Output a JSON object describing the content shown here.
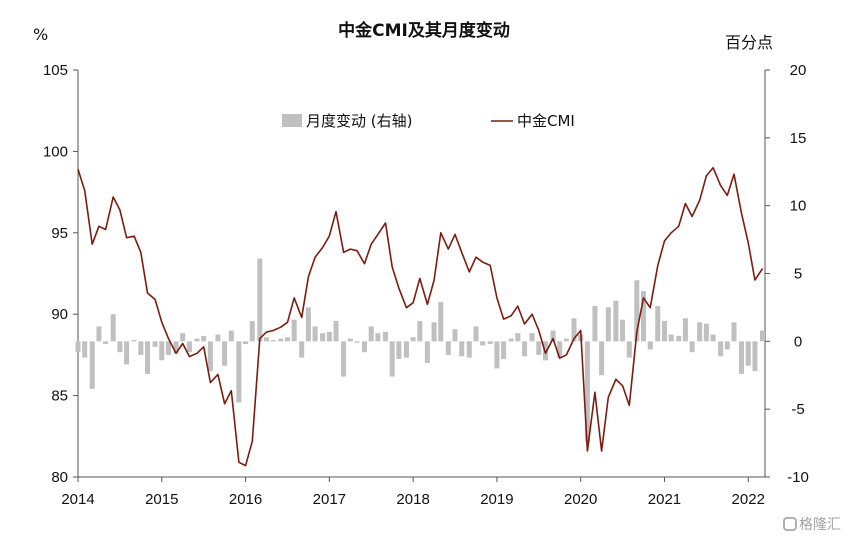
{
  "chart_data": {
    "type": "bar+line",
    "title": "中金CMI及其月度变动",
    "left_unit": "%",
    "right_unit": "百分点",
    "left_ylim": [
      80,
      105
    ],
    "left_yticks": [
      80,
      85,
      90,
      95,
      100,
      105
    ],
    "right_ylim": [
      -10,
      20
    ],
    "right_yticks": [
      -10,
      -5,
      0,
      5,
      10,
      15,
      20
    ],
    "x_ticks": [
      "2014",
      "2015",
      "2016",
      "2017",
      "2018",
      "2019",
      "2020",
      "2021",
      "2022"
    ],
    "x_range": [
      2014.0,
      2022.17
    ],
    "legend": {
      "bar_label": "月度变动 (右轴)",
      "line_label": "中金CMI",
      "position": "top-center"
    },
    "colors": {
      "bar": "#c0c0c0",
      "line": "#7b1c12",
      "axis": "#555555"
    },
    "cmi": [
      [
        2014.0,
        98.9
      ],
      [
        2014.08,
        97.6
      ],
      [
        2014.17,
        94.3
      ],
      [
        2014.25,
        95.4
      ],
      [
        2014.33,
        95.2
      ],
      [
        2014.42,
        97.2
      ],
      [
        2014.5,
        96.4
      ],
      [
        2014.58,
        94.7
      ],
      [
        2014.67,
        94.8
      ],
      [
        2014.75,
        93.8
      ],
      [
        2014.83,
        91.3
      ],
      [
        2014.92,
        90.9
      ],
      [
        2015.0,
        89.5
      ],
      [
        2015.08,
        88.5
      ],
      [
        2015.17,
        87.6
      ],
      [
        2015.25,
        88.2
      ],
      [
        2015.33,
        87.4
      ],
      [
        2015.42,
        87.6
      ],
      [
        2015.5,
        88.0
      ],
      [
        2015.58,
        85.8
      ],
      [
        2015.67,
        86.3
      ],
      [
        2015.75,
        84.5
      ],
      [
        2015.83,
        85.3
      ],
      [
        2015.92,
        80.9
      ],
      [
        2016.0,
        80.7
      ],
      [
        2016.08,
        82.2
      ],
      [
        2016.17,
        88.5
      ],
      [
        2016.25,
        88.9
      ],
      [
        2016.33,
        89.0
      ],
      [
        2016.42,
        89.2
      ],
      [
        2016.5,
        89.5
      ],
      [
        2016.58,
        91.0
      ],
      [
        2016.67,
        89.8
      ],
      [
        2016.75,
        92.3
      ],
      [
        2016.83,
        93.5
      ],
      [
        2016.92,
        94.1
      ],
      [
        2017.0,
        94.8
      ],
      [
        2017.08,
        96.3
      ],
      [
        2017.17,
        93.8
      ],
      [
        2017.25,
        94.0
      ],
      [
        2017.33,
        93.9
      ],
      [
        2017.42,
        93.1
      ],
      [
        2017.5,
        94.3
      ],
      [
        2017.58,
        94.9
      ],
      [
        2017.67,
        95.6
      ],
      [
        2017.75,
        92.9
      ],
      [
        2017.83,
        91.6
      ],
      [
        2017.92,
        90.4
      ],
      [
        2018.0,
        90.7
      ],
      [
        2018.08,
        92.2
      ],
      [
        2018.17,
        90.6
      ],
      [
        2018.25,
        92.1
      ],
      [
        2018.33,
        95.0
      ],
      [
        2018.42,
        94.0
      ],
      [
        2018.5,
        94.9
      ],
      [
        2018.58,
        93.8
      ],
      [
        2018.67,
        92.6
      ],
      [
        2018.75,
        93.5
      ],
      [
        2018.83,
        93.2
      ],
      [
        2018.92,
        93.0
      ],
      [
        2019.0,
        91.0
      ],
      [
        2019.08,
        89.7
      ],
      [
        2019.17,
        89.9
      ],
      [
        2019.25,
        90.5
      ],
      [
        2019.33,
        89.4
      ],
      [
        2019.42,
        90.0
      ],
      [
        2019.5,
        89.0
      ],
      [
        2019.58,
        87.6
      ],
      [
        2019.67,
        88.5
      ],
      [
        2019.75,
        87.3
      ],
      [
        2019.83,
        87.5
      ],
      [
        2019.92,
        88.5
      ],
      [
        2020.0,
        89.0
      ],
      [
        2020.08,
        81.6
      ],
      [
        2020.17,
        85.2
      ],
      [
        2020.25,
        81.6
      ],
      [
        2020.33,
        84.9
      ],
      [
        2020.42,
        86.0
      ],
      [
        2020.5,
        85.6
      ],
      [
        2020.58,
        84.4
      ],
      [
        2020.67,
        88.9
      ],
      [
        2020.75,
        91.0
      ],
      [
        2020.83,
        90.4
      ],
      [
        2020.92,
        93.0
      ],
      [
        2021.0,
        94.5
      ],
      [
        2021.08,
        95.0
      ],
      [
        2021.17,
        95.4
      ],
      [
        2021.25,
        96.8
      ],
      [
        2021.33,
        96.0
      ],
      [
        2021.42,
        97.0
      ],
      [
        2021.5,
        98.5
      ],
      [
        2021.58,
        99.0
      ],
      [
        2021.67,
        97.9
      ],
      [
        2021.75,
        97.3
      ],
      [
        2021.83,
        98.6
      ],
      [
        2021.92,
        96.2
      ],
      [
        2022.0,
        94.4
      ],
      [
        2022.08,
        92.1
      ],
      [
        2022.17,
        92.8
      ]
    ],
    "change": [
      [
        2014.0,
        -0.8
      ],
      [
        2014.08,
        -1.2
      ],
      [
        2014.17,
        -3.5
      ],
      [
        2014.25,
        1.1
      ],
      [
        2014.33,
        -0.2
      ],
      [
        2014.42,
        2.0
      ],
      [
        2014.5,
        -0.8
      ],
      [
        2014.58,
        -1.7
      ],
      [
        2014.67,
        0.1
      ],
      [
        2014.75,
        -1.0
      ],
      [
        2014.83,
        -2.4
      ],
      [
        2014.92,
        -0.4
      ],
      [
        2015.0,
        -1.4
      ],
      [
        2015.08,
        -1.0
      ],
      [
        2015.17,
        -0.9
      ],
      [
        2015.25,
        0.6
      ],
      [
        2015.33,
        -0.8
      ],
      [
        2015.42,
        0.2
      ],
      [
        2015.5,
        0.4
      ],
      [
        2015.58,
        -2.2
      ],
      [
        2015.67,
        0.5
      ],
      [
        2015.75,
        -1.8
      ],
      [
        2015.83,
        0.8
      ],
      [
        2015.92,
        -4.5
      ],
      [
        2016.0,
        -0.2
      ],
      [
        2016.08,
        1.5
      ],
      [
        2016.17,
        6.1
      ],
      [
        2016.25,
        0.3
      ],
      [
        2016.33,
        0.1
      ],
      [
        2016.42,
        0.2
      ],
      [
        2016.5,
        0.3
      ],
      [
        2016.58,
        1.6
      ],
      [
        2016.67,
        -1.2
      ],
      [
        2016.75,
        2.5
      ],
      [
        2016.83,
        1.1
      ],
      [
        2016.92,
        0.6
      ],
      [
        2017.0,
        0.7
      ],
      [
        2017.08,
        1.5
      ],
      [
        2017.17,
        -2.6
      ],
      [
        2017.25,
        0.2
      ],
      [
        2017.33,
        -0.1
      ],
      [
        2017.42,
        -0.8
      ],
      [
        2017.5,
        1.1
      ],
      [
        2017.58,
        0.6
      ],
      [
        2017.67,
        0.7
      ],
      [
        2017.75,
        -2.6
      ],
      [
        2017.83,
        -1.3
      ],
      [
        2017.92,
        -1.2
      ],
      [
        2018.0,
        0.3
      ],
      [
        2018.08,
        1.5
      ],
      [
        2018.17,
        -1.6
      ],
      [
        2018.25,
        1.4
      ],
      [
        2018.33,
        2.9
      ],
      [
        2018.42,
        -1.0
      ],
      [
        2018.5,
        0.9
      ],
      [
        2018.58,
        -1.1
      ],
      [
        2018.67,
        -1.2
      ],
      [
        2018.75,
        1.1
      ],
      [
        2018.83,
        -0.3
      ],
      [
        2018.92,
        -0.2
      ],
      [
        2019.0,
        -2.0
      ],
      [
        2019.08,
        -1.3
      ],
      [
        2019.17,
        0.2
      ],
      [
        2019.25,
        0.6
      ],
      [
        2019.33,
        -1.1
      ],
      [
        2019.42,
        0.6
      ],
      [
        2019.5,
        -1.0
      ],
      [
        2019.58,
        -1.4
      ],
      [
        2019.67,
        0.8
      ],
      [
        2019.75,
        -1.2
      ],
      [
        2019.83,
        0.2
      ],
      [
        2019.92,
        1.7
      ],
      [
        2020.0,
        0.5
      ],
      [
        2020.08,
        -7.4
      ],
      [
        2020.17,
        2.6
      ],
      [
        2020.25,
        -2.5
      ],
      [
        2020.33,
        2.5
      ],
      [
        2020.42,
        3.0
      ],
      [
        2020.5,
        1.6
      ],
      [
        2020.58,
        -1.2
      ],
      [
        2020.67,
        4.5
      ],
      [
        2020.75,
        3.7
      ],
      [
        2020.83,
        -0.6
      ],
      [
        2020.92,
        2.6
      ],
      [
        2021.0,
        1.5
      ],
      [
        2021.08,
        0.5
      ],
      [
        2021.17,
        0.4
      ],
      [
        2021.25,
        1.7
      ],
      [
        2021.33,
        -0.8
      ],
      [
        2021.42,
        1.4
      ],
      [
        2021.5,
        1.3
      ],
      [
        2021.58,
        0.5
      ],
      [
        2021.67,
        -1.1
      ],
      [
        2021.75,
        -0.6
      ],
      [
        2021.83,
        1.4
      ],
      [
        2021.92,
        -2.4
      ],
      [
        2022.0,
        -1.8
      ],
      [
        2022.08,
        -2.2
      ],
      [
        2022.17,
        0.8
      ]
    ]
  },
  "watermark": "格隆汇"
}
